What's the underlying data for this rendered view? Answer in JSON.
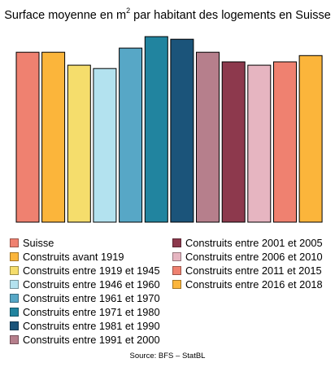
{
  "chart_data": {
    "type": "bar",
    "title_prefix": "Surface moyenne en m",
    "title_sup": "2",
    "title_suffix": " par habitant des logements en Suisse",
    "xlabel": "",
    "ylabel": "",
    "grid": false,
    "axes_visible": false,
    "legend_position": "bottom",
    "ylim": [
      0,
      50
    ],
    "categories": [
      "Suisse",
      "Construits avant 1919",
      "Construits entre 1919 et 1945",
      "Construits entre 1946 et 1960",
      "Construits entre 1961 et 1970",
      "Construits entre 1971 et 1980",
      "Construits entre 1981 et 1990",
      "Construits entre 1991 et 2000",
      "Construits entre 2001 et 2005",
      "Construits entre 2006 et 2010",
      "Construits entre 2011 et 2015",
      "Construits entre 2016 et 2018"
    ],
    "values": [
      45.8,
      45.8,
      42.3,
      41.4,
      46.9,
      50.0,
      49.3,
      45.8,
      43.2,
      42.3,
      43.2,
      44.9
    ],
    "colors": [
      "#ef8170",
      "#fbb53b",
      "#f5dd6c",
      "#b3e2ef",
      "#57a7c6",
      "#21849f",
      "#1b547a",
      "#b67f8c",
      "#8d394d",
      "#e6b5c1",
      "#ef8170",
      "#fbb53b"
    ],
    "source": "Source: BFS – StatBL"
  }
}
